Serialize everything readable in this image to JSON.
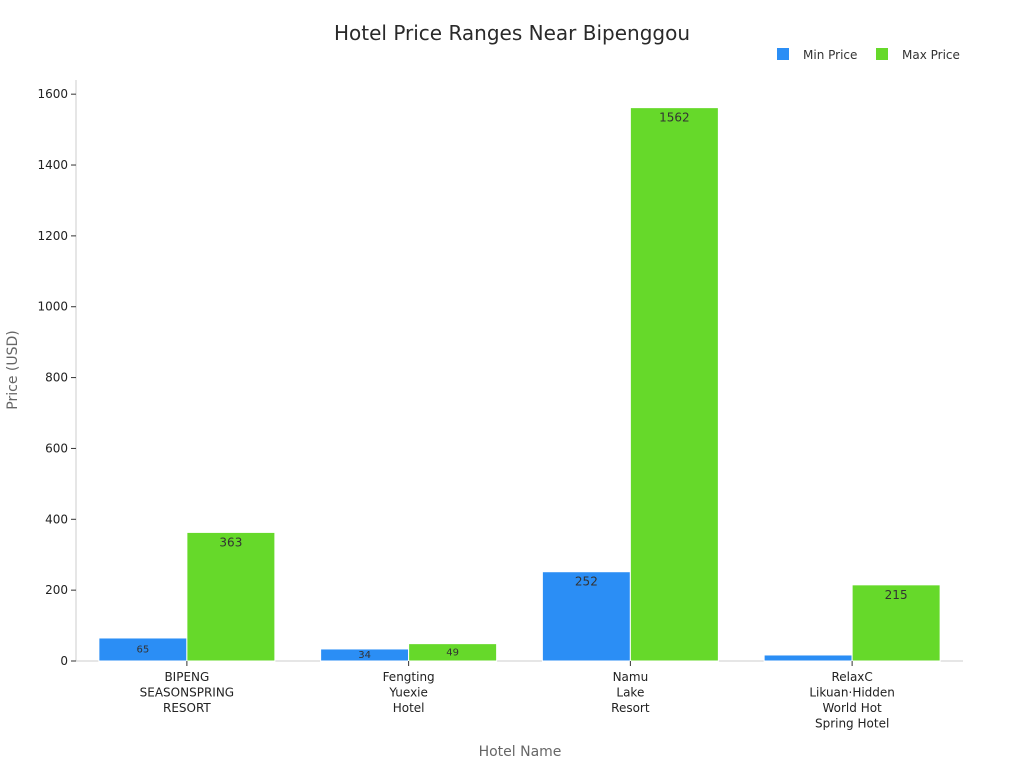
{
  "chart_data": {
    "type": "bar",
    "title": "Hotel Price Ranges Near Bipenggou",
    "xlabel": "Hotel Name",
    "ylabel": "Price (USD)",
    "ylim": [
      0,
      1640
    ],
    "yticks": [
      0,
      200,
      400,
      600,
      800,
      1000,
      1200,
      1400,
      1600
    ],
    "grid": false,
    "legend_position": "top-right",
    "categories": [
      [
        "BIPENG",
        "SEASONSPRING",
        "RESORT"
      ],
      [
        "Fengting",
        "Yuexie",
        "Hotel"
      ],
      [
        "Namu",
        "Lake",
        "Resort"
      ],
      [
        "RelaxC",
        "Likuan·Hidden",
        "World Hot",
        "Spring Hotel"
      ]
    ],
    "series": [
      {
        "name": "Min Price",
        "color": "#2b8ef5",
        "values": [
          65,
          34,
          252,
          17
        ],
        "labels": [
          "65",
          "34",
          "252",
          ""
        ]
      },
      {
        "name": "Max Price",
        "color": "#66d92a",
        "values": [
          363,
          49,
          1562,
          215
        ],
        "labels": [
          "363",
          "49",
          "1562",
          "215"
        ]
      }
    ]
  }
}
